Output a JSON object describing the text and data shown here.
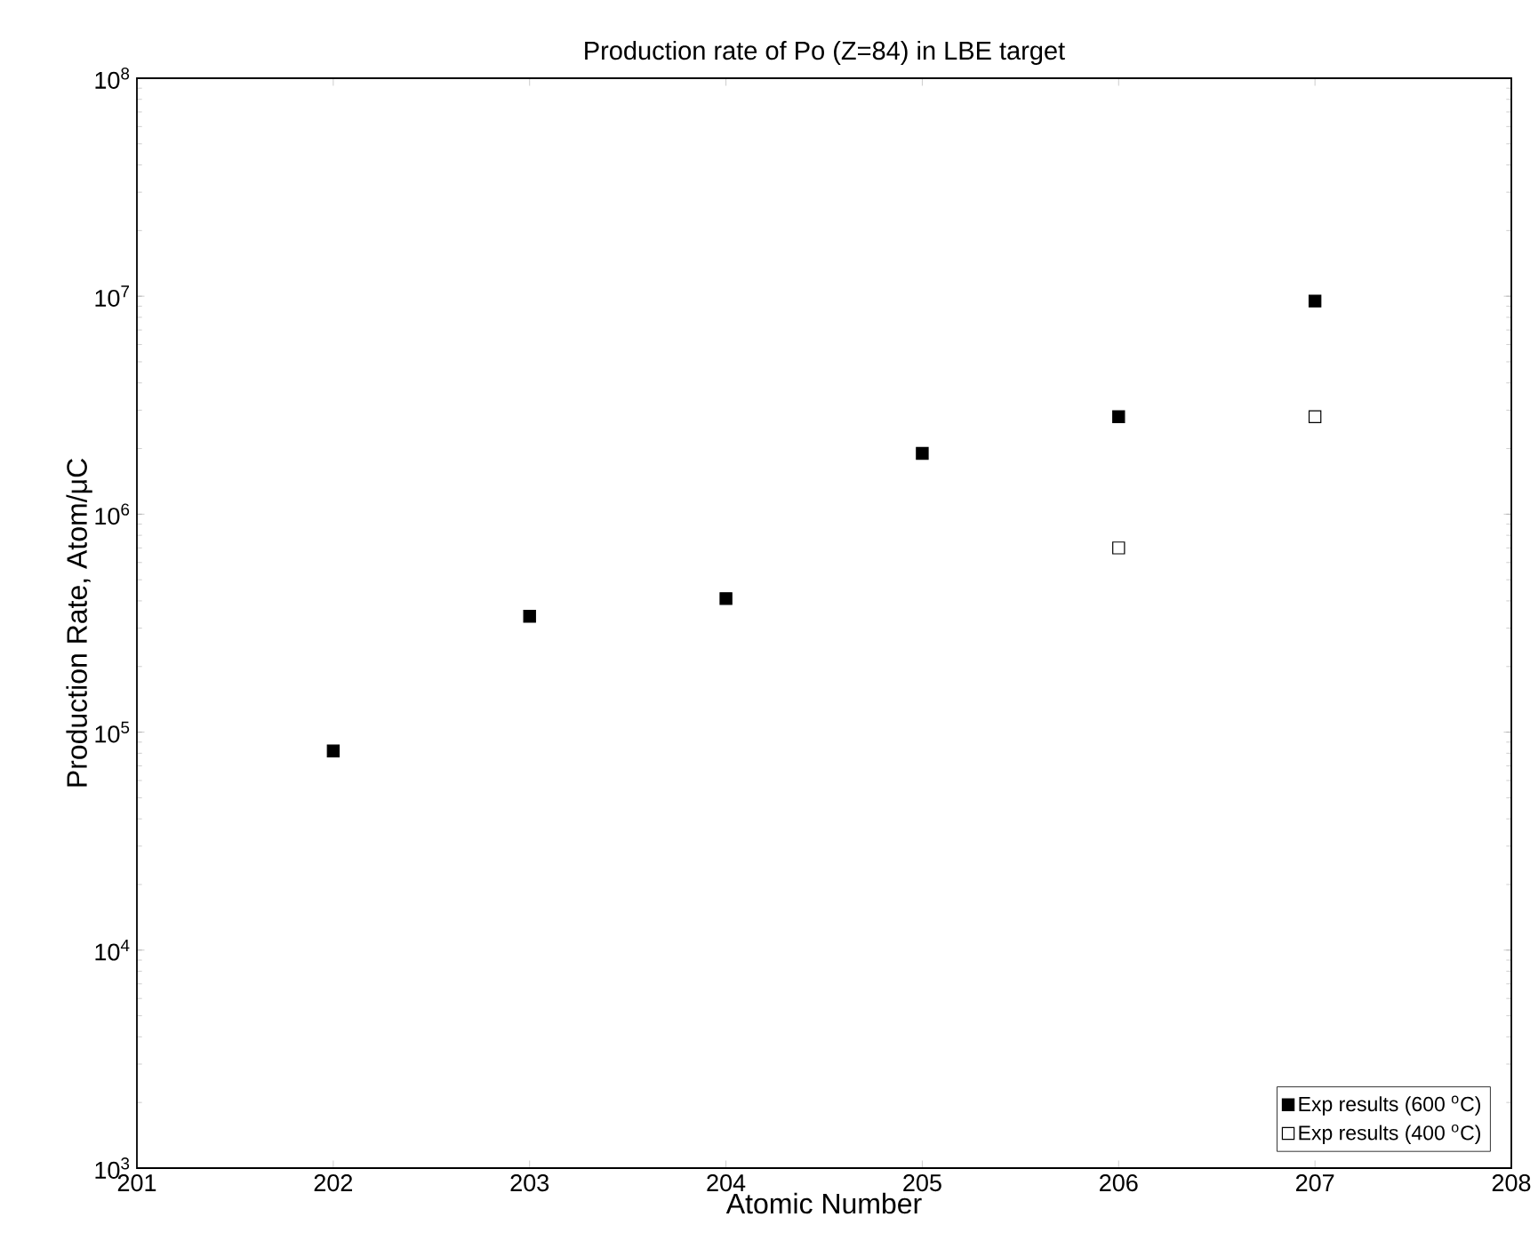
{
  "chart_data": {
    "type": "scatter",
    "title": "Production rate of Po (Z=84) in LBE target",
    "xlabel": "Atomic Number",
    "ylabel": "Production Rate, Atom/μC",
    "x": [
      202,
      203,
      204,
      205,
      206,
      207
    ],
    "series": [
      {
        "name": "Exp results (600 $^{o}$C)",
        "color": "#000000",
        "values": [
          82000,
          340000,
          410000,
          1900000,
          2800000,
          9500000
        ]
      },
      {
        "name": "Exp results (400 $^{o}$C)",
        "color": "#ffffff",
        "values": [
          null,
          null,
          null,
          null,
          700000,
          2800000
        ]
      }
    ],
    "log": "y",
    "grid": false,
    "legend": "bottom right",
    "marker": "square",
    "xlim": [
      201,
      208
    ],
    "xticks": [
      201,
      202,
      203,
      204,
      205,
      206,
      207,
      208
    ],
    "ylim": [
      1000,
      100000000
    ],
    "yticks": [
      {
        "value": 1000,
        "label": "10$^{3}$"
      },
      {
        "value": 10000,
        "label": "10$^{4}$"
      },
      {
        "value": 100000,
        "label": "10$^{5}$"
      },
      {
        "value": 1000000,
        "label": "10$^{6}$"
      },
      {
        "value": 10000000,
        "label": "10$^{7}$"
      },
      {
        "value": 100000000,
        "label": "10$^{8}$"
      }
    ]
  }
}
